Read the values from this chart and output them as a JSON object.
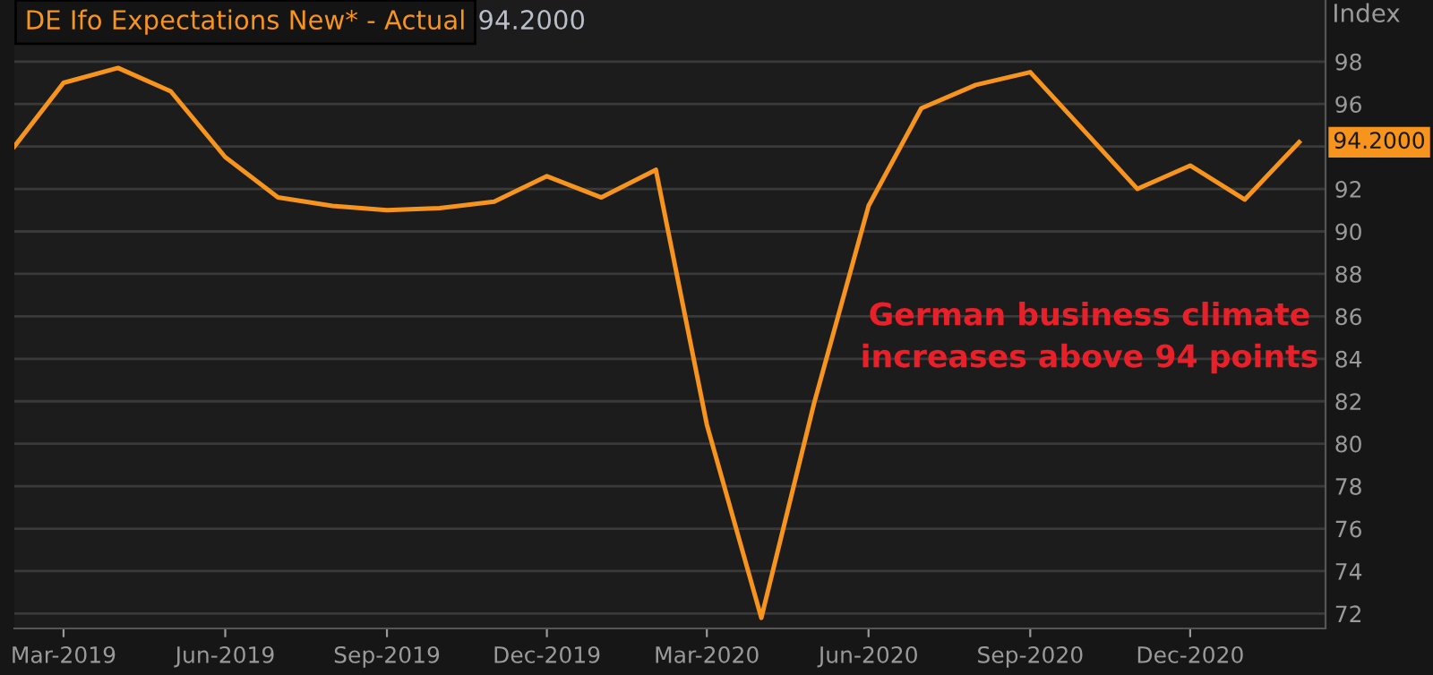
{
  "chart_data": {
    "type": "line",
    "title": "DE Ifo Expectations New* - Actual",
    "subtitle": "94.2000",
    "ylabel": "Index",
    "annotations": [
      "German business climate\nincreases above 94 points"
    ],
    "x": [
      "2019-02",
      "2019-03",
      "2019-04",
      "2019-05",
      "2019-06",
      "2019-07",
      "2019-08",
      "2019-09",
      "2019-10",
      "2019-11",
      "2019-12",
      "2020-01",
      "2020-02",
      "2020-03",
      "2020-04",
      "2020-05",
      "2020-06",
      "2020-07",
      "2020-08",
      "2020-09",
      "2020-10",
      "2020-11",
      "2020-12",
      "2021-01",
      "2021-02"
    ],
    "series": [
      {
        "color": "#f7941d",
        "values": [
          94.0,
          97.0,
          97.7,
          96.6,
          93.5,
          91.6,
          91.2,
          91.0,
          91.1,
          91.4,
          92.6,
          91.6,
          92.9,
          80.9,
          71.8,
          81.9,
          91.2,
          95.8,
          96.9,
          97.5,
          94.8,
          92.0,
          93.1,
          91.5,
          94.2
        ],
        "value_labels": [
          null,
          null,
          null,
          null,
          null,
          null,
          null,
          null,
          null,
          null,
          null,
          null,
          null,
          null,
          null,
          null,
          null,
          null,
          null,
          null,
          null,
          null,
          null,
          null,
          "94.2000"
        ]
      }
    ],
    "xlim": [
      "2019-02-01",
      "2021-02-16"
    ],
    "xticks": [
      {
        "value": "2019-03-01",
        "label": "Mar-2019"
      },
      {
        "value": "2019-06-01",
        "label": "Jun-2019"
      },
      {
        "value": "2019-09-01",
        "label": "Sep-2019"
      },
      {
        "value": "2019-12-01",
        "label": "Dec-2019"
      },
      {
        "value": "2020-03-01",
        "label": "Mar-2020"
      },
      {
        "value": "2020-06-01",
        "label": "Jun-2020"
      },
      {
        "value": "2020-09-01",
        "label": "Sep-2020"
      },
      {
        "value": "2020-12-01",
        "label": "Dec-2020"
      }
    ],
    "ylim": [
      71.3,
      100.9
    ],
    "yticks": [
      72,
      74,
      76,
      78,
      80,
      82,
      84,
      86,
      88,
      90,
      92,
      {
        "value": 94,
        "label": null
      },
      96,
      98
    ],
    "grid": "y",
    "legend": false,
    "marker": "none",
    "line_style": "solid"
  }
}
